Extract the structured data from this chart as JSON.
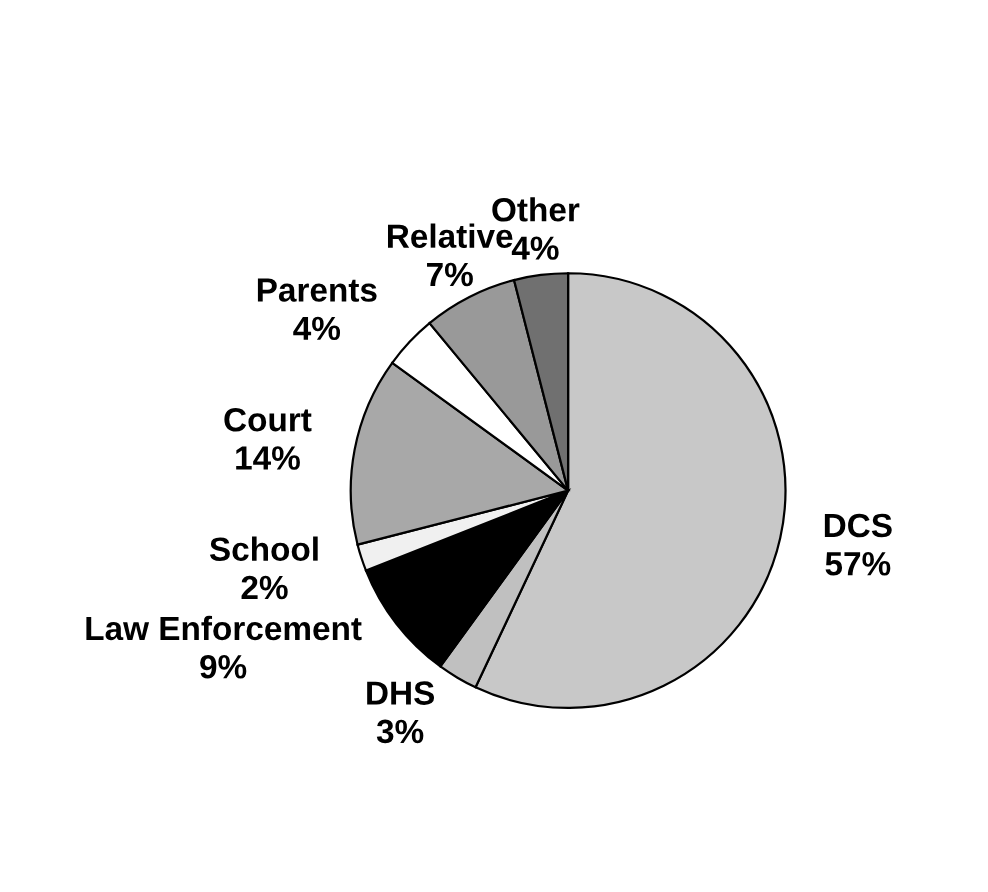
{
  "chart_data": {
    "type": "pie",
    "categories": [
      "DCS",
      "DHS",
      "Law Enforcement",
      "School",
      "Court",
      "Parents",
      "Relative",
      "Other"
    ],
    "values": [
      57,
      3,
      9,
      2,
      14,
      4,
      7,
      4
    ],
    "colors": [
      "#c8c8c8",
      "#c0c0c0",
      "#000000",
      "#f0f0f0",
      "#a8a8a8",
      "#ffffff",
      "#999999",
      "#707070"
    ],
    "value_labels": [
      "57%",
      "3%",
      "9%",
      "2%",
      "14%",
      "4%",
      "7%",
      "4%"
    ]
  }
}
